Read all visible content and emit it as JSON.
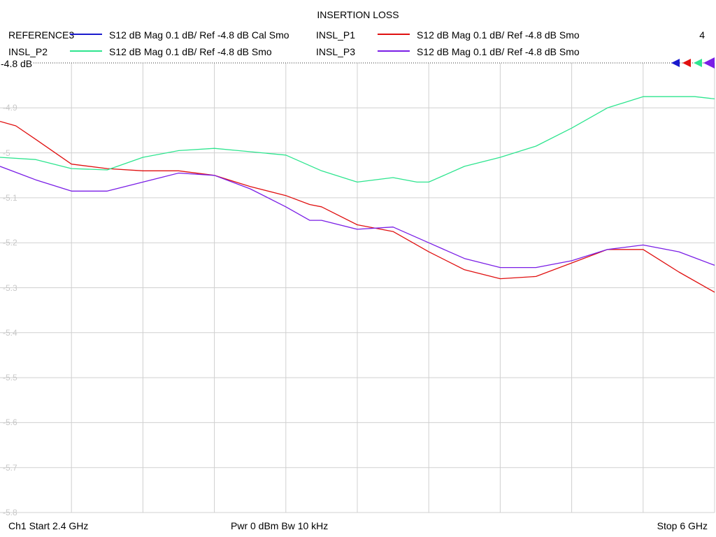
{
  "title": "INSERTION LOSS",
  "channel_count": "4",
  "legend": [
    {
      "name": "REFERENCE3",
      "desc": "S12  dB Mag  0.1 dB/ Ref -4.8 dB  Cal Smo",
      "color": "#1a1acd"
    },
    {
      "name": "INSL_P1",
      "desc": "S12  dB Mag  0.1 dB/ Ref -4.8 dB  Smo",
      "color": "#e01010"
    },
    {
      "name": "INSL_P2",
      "desc": "S12  dB Mag  0.1 dB/ Ref -4.8 dB  Smo",
      "color": "#2ee58f"
    },
    {
      "name": "INSL_P3",
      "desc": "S12  dB Mag  0.1 dB/ Ref -4.8 dB  Smo",
      "color": "#7a1ee6"
    }
  ],
  "ref_label": "-4.8 dB",
  "yticks": [
    "-4.8",
    "-4.9",
    "-5",
    "-5.1",
    "-5.2",
    "-5.3",
    "-5.4",
    "-5.5",
    "-5.6",
    "-5.7",
    "-5.8"
  ],
  "footer": {
    "start": "Ch1  Start  2.4 GHz",
    "middle": "Pwr  0 dBm  Bw  10 kHz",
    "stop": "Stop  6 GHz"
  },
  "chart_data": {
    "type": "line",
    "title": "INSERTION LOSS",
    "xlabel": "",
    "ylabel": "",
    "xlim": [
      2.4,
      6.0
    ],
    "ylim": [
      -5.8,
      -4.8
    ],
    "x_unit": "GHz",
    "y_unit": "dB",
    "grid": true,
    "legend_position": "top",
    "series": [
      {
        "name": "INSL_P1",
        "color": "#e01010",
        "x": [
          2.4,
          2.48,
          2.58,
          2.76,
          2.94,
          3.12,
          3.3,
          3.48,
          3.66,
          3.84,
          3.96,
          4.02,
          4.2,
          4.38,
          4.56,
          4.74,
          4.92,
          5.1,
          5.28,
          5.46,
          5.64,
          5.82,
          6.0
        ],
        "y": [
          -4.93,
          -4.94,
          -4.97,
          -5.025,
          -5.035,
          -5.04,
          -5.04,
          -5.05,
          -5.075,
          -5.095,
          -5.115,
          -5.12,
          -5.16,
          -5.175,
          -5.22,
          -5.26,
          -5.28,
          -5.275,
          -5.245,
          -5.215,
          -5.215,
          -5.265,
          -5.31
        ]
      },
      {
        "name": "INSL_P2",
        "color": "#2ee58f",
        "x": [
          2.4,
          2.58,
          2.76,
          2.94,
          3.12,
          3.3,
          3.48,
          3.6,
          3.84,
          4.02,
          4.2,
          4.38,
          4.5,
          4.56,
          4.74,
          4.92,
          5.1,
          5.28,
          5.46,
          5.64,
          5.82,
          5.9,
          6.0
        ],
        "y": [
          -5.01,
          -5.015,
          -5.035,
          -5.038,
          -5.01,
          -4.995,
          -4.99,
          -4.995,
          -5.005,
          -5.04,
          -5.065,
          -5.055,
          -5.065,
          -5.065,
          -5.03,
          -5.01,
          -4.985,
          -4.945,
          -4.9,
          -4.875,
          -4.875,
          -4.875,
          -4.88
        ]
      },
      {
        "name": "INSL_P3",
        "color": "#7a1ee6",
        "x": [
          2.4,
          2.58,
          2.76,
          2.94,
          3.12,
          3.3,
          3.48,
          3.66,
          3.84,
          3.96,
          4.02,
          4.2,
          4.38,
          4.56,
          4.74,
          4.92,
          5.1,
          5.28,
          5.46,
          5.64,
          5.82,
          6.0
        ],
        "y": [
          -5.03,
          -5.06,
          -5.085,
          -5.085,
          -5.065,
          -5.045,
          -5.05,
          -5.08,
          -5.12,
          -5.15,
          -5.15,
          -5.17,
          -5.165,
          -5.2,
          -5.235,
          -5.255,
          -5.255,
          -5.24,
          -5.215,
          -5.205,
          -5.22,
          -5.25
        ]
      }
    ]
  }
}
